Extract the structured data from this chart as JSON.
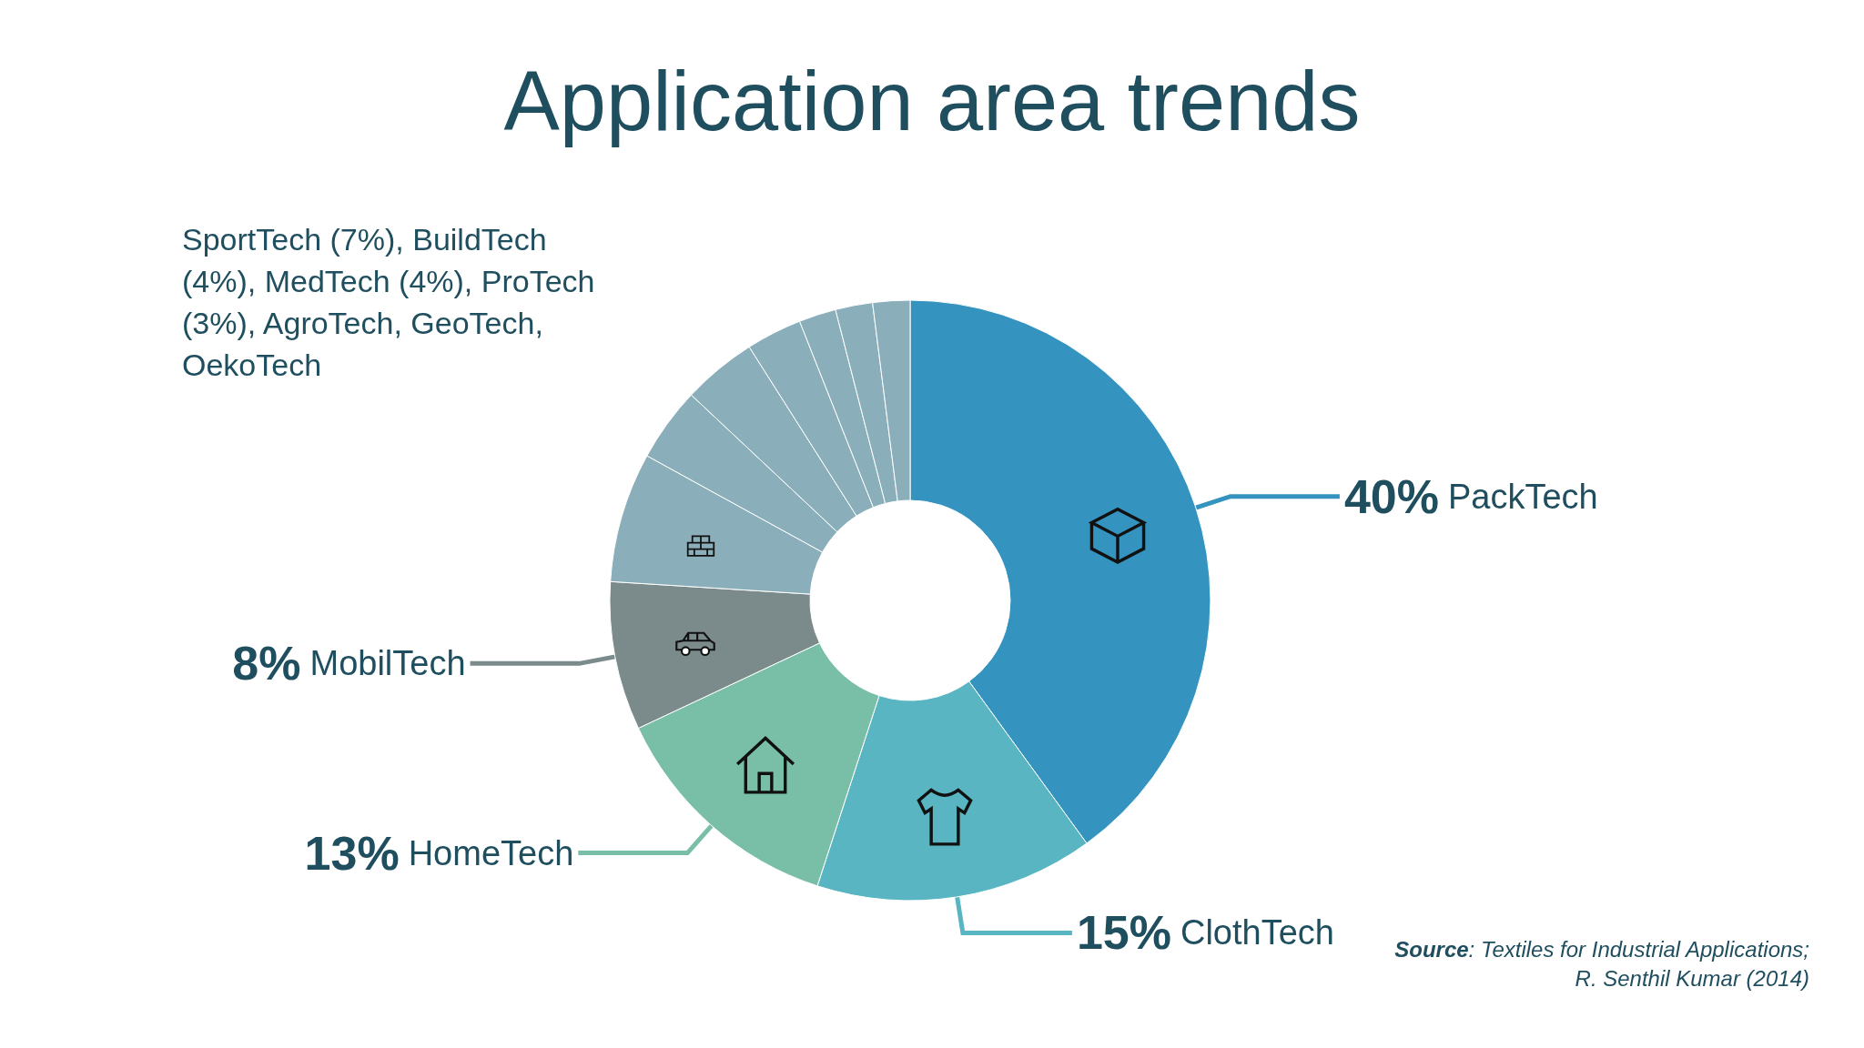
{
  "chart_data": {
    "type": "donut",
    "title": "Application area trends",
    "categories": [
      "PackTech",
      "ClothTech",
      "HomeTech",
      "MobilTech",
      null,
      null,
      null,
      null,
      null,
      null,
      null
    ],
    "values": [
      40,
      15,
      13,
      8,
      7,
      4,
      4,
      3,
      2,
      2,
      2
    ],
    "colors": [
      "#3494bf",
      "#58b5c1",
      "#79bfa8",
      "#7b8b8c",
      "#8aafbb",
      "#8aafbb",
      "#8aafbb",
      "#8aafbb",
      "#8aafbb",
      "#8aafbb",
      "#8aafbb"
    ],
    "value_labels": [
      "40%",
      "15%",
      "13%",
      "8%",
      null,
      null,
      null,
      null,
      null,
      null,
      null
    ],
    "annotations": [
      "SportTech (7%), BuildTech (4%), MedTech (4%), ProTech (3%), AgroTech, GeoTech, OekoTech",
      "Source: Textiles for Industrial Applications;\nR. Senthil Kumar (2014)"
    ]
  }
}
